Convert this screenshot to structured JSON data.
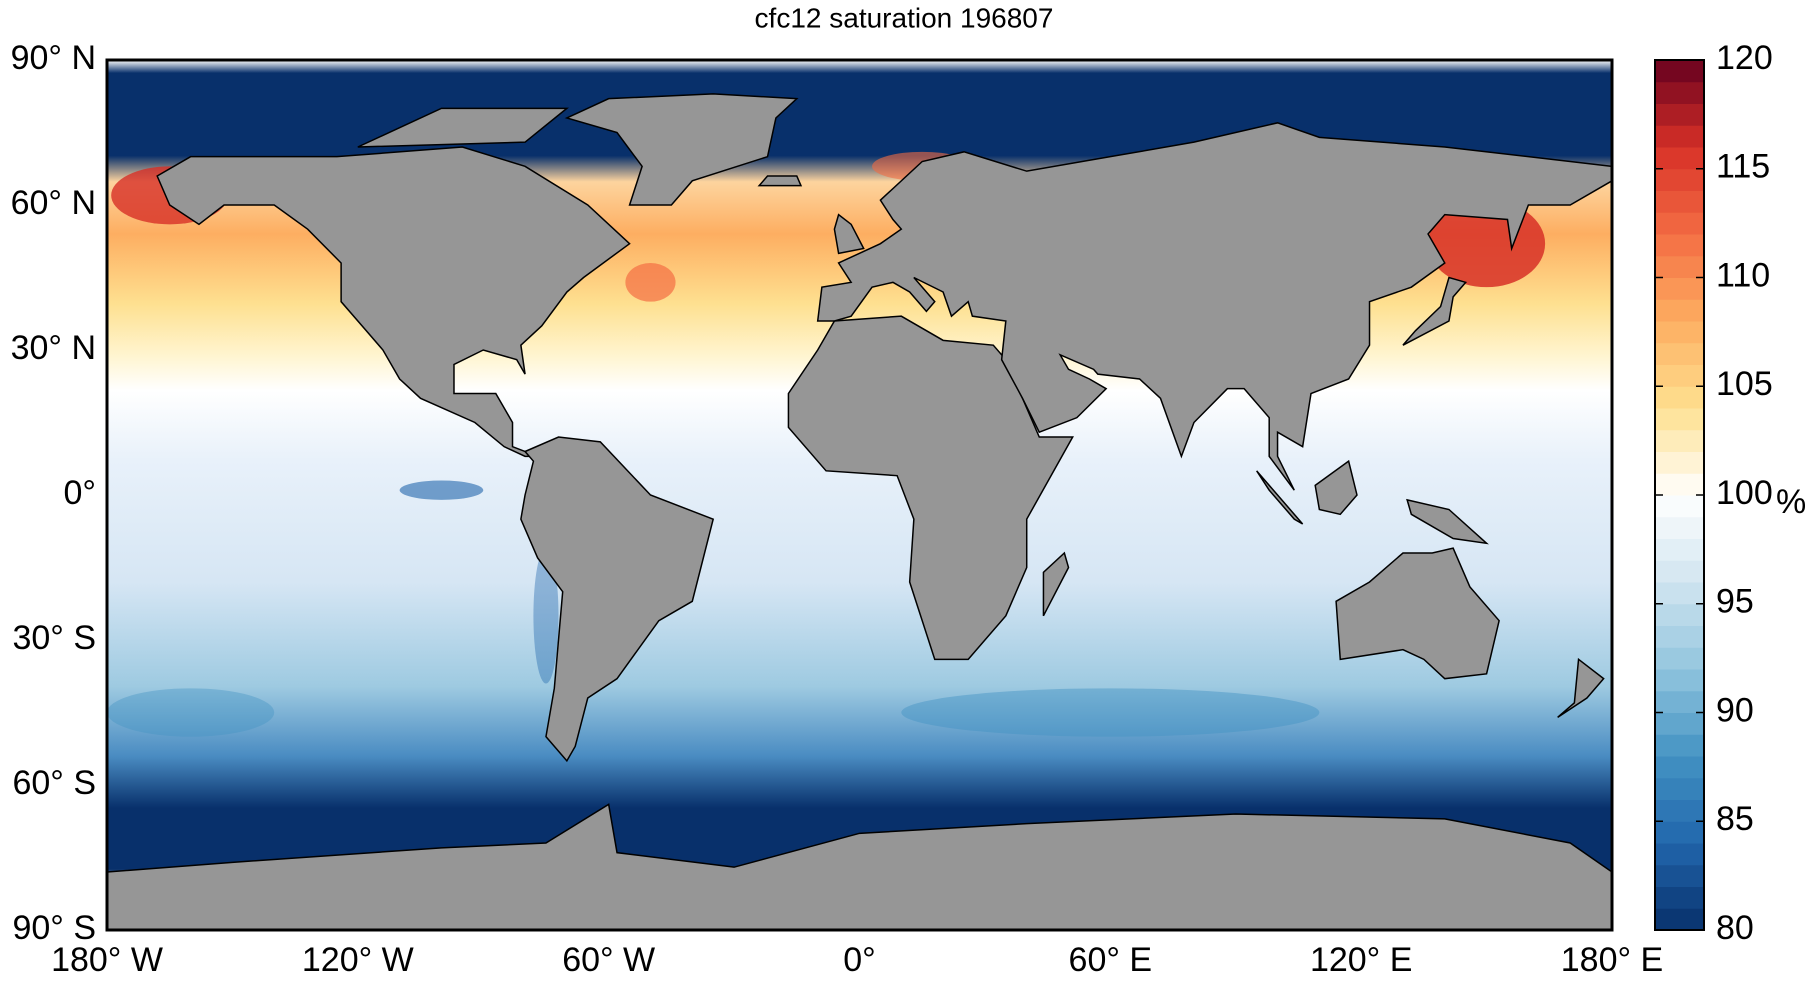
{
  "chart_data": {
    "type": "map",
    "title": "cfc12 saturation 196807",
    "xlim": [
      -180,
      180
    ],
    "ylim": [
      -90,
      90
    ],
    "xticks": [
      {
        "value": -180,
        "label": "180° W"
      },
      {
        "value": -120,
        "label": "120° W"
      },
      {
        "value": -60,
        "label": "60° W"
      },
      {
        "value": 0,
        "label": "0°"
      },
      {
        "value": 60,
        "label": "60° E"
      },
      {
        "value": 120,
        "label": "120° E"
      },
      {
        "value": 180,
        "label": "180° E"
      }
    ],
    "yticks": [
      {
        "value": 90,
        "label": "90° N"
      },
      {
        "value": 60,
        "label": "60° N"
      },
      {
        "value": 30,
        "label": "30° N"
      },
      {
        "value": 0,
        "label": "0°"
      },
      {
        "value": -30,
        "label": "30° S"
      },
      {
        "value": -60,
        "label": "60° S"
      },
      {
        "value": -90,
        "label": "90° S"
      }
    ],
    "colorbar": {
      "clim": [
        80,
        120
      ],
      "ticks": [
        80,
        85,
        90,
        95,
        100,
        105,
        110,
        115,
        120
      ],
      "label": "%",
      "colormap": [
        "#08306b",
        "#2166ac",
        "#4393c3",
        "#92c5de",
        "#d1e5f0",
        "#ffffff",
        "#fee090",
        "#fdae61",
        "#f46d43",
        "#d73027",
        "#67001f"
      ]
    }
  }
}
